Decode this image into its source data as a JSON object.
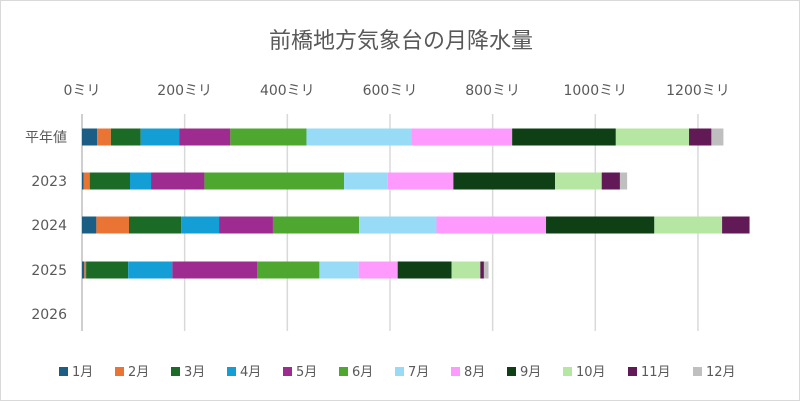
{
  "chart_data": {
    "type": "bar",
    "orientation": "horizontal",
    "stacked": true,
    "title": "前橋地方気象台の月降水量",
    "categories": [
      "平年値",
      "2023",
      "2024",
      "2025",
      "2026"
    ],
    "x_ticks": [
      "0ミリ",
      "200ミリ",
      "400ミリ",
      "600ミリ",
      "800ミリ",
      "1000ミリ",
      "1200ミリ"
    ],
    "xlim": [
      0,
      1300
    ],
    "x_axis_position": "top",
    "grid": true,
    "legend_position": "bottom",
    "series": [
      {
        "name": "1月",
        "color": "#1a5e86",
        "values": [
          29.7,
          3,
          28,
          4.5,
          0
        ]
      },
      {
        "name": "2月",
        "color": "#ea7433",
        "values": [
          26.5,
          12,
          63.5,
          3.5,
          0
        ]
      },
      {
        "name": "3月",
        "color": "#1b6b26",
        "values": [
          58.2,
          78.5,
          101.5,
          82,
          0
        ]
      },
      {
        "name": "4月",
        "color": "#139fd6",
        "values": [
          74.8,
          41,
          74,
          86,
          0
        ]
      },
      {
        "name": "5月",
        "color": "#9e2b8f",
        "values": [
          99.8,
          104,
          105,
          165,
          0
        ]
      },
      {
        "name": "6月",
        "color": "#4ea72e",
        "values": [
          148.3,
          272,
          168,
          121.5,
          0
        ]
      },
      {
        "name": "7月",
        "color": "#97dbf6",
        "values": [
          204.5,
          85,
          150.5,
          76.5,
          0
        ]
      },
      {
        "name": "8月",
        "color": "#fe99fe",
        "values": [
          196.2,
          128,
          213.5,
          76,
          0
        ]
      },
      {
        "name": "9月",
        "color": "#0f4015",
        "values": [
          202,
          198,
          211,
          105,
          0
        ]
      },
      {
        "name": "10月",
        "color": "#b5e6a2",
        "values": [
          142.6,
          91,
          132,
          56,
          0
        ]
      },
      {
        "name": "11月",
        "color": "#611a55",
        "values": [
          43.6,
          35.5,
          53.5,
          7,
          0
        ]
      },
      {
        "name": "12月",
        "color": "#bfbfbf",
        "values": [
          23.4,
          14,
          0,
          9,
          0
        ]
      }
    ]
  }
}
